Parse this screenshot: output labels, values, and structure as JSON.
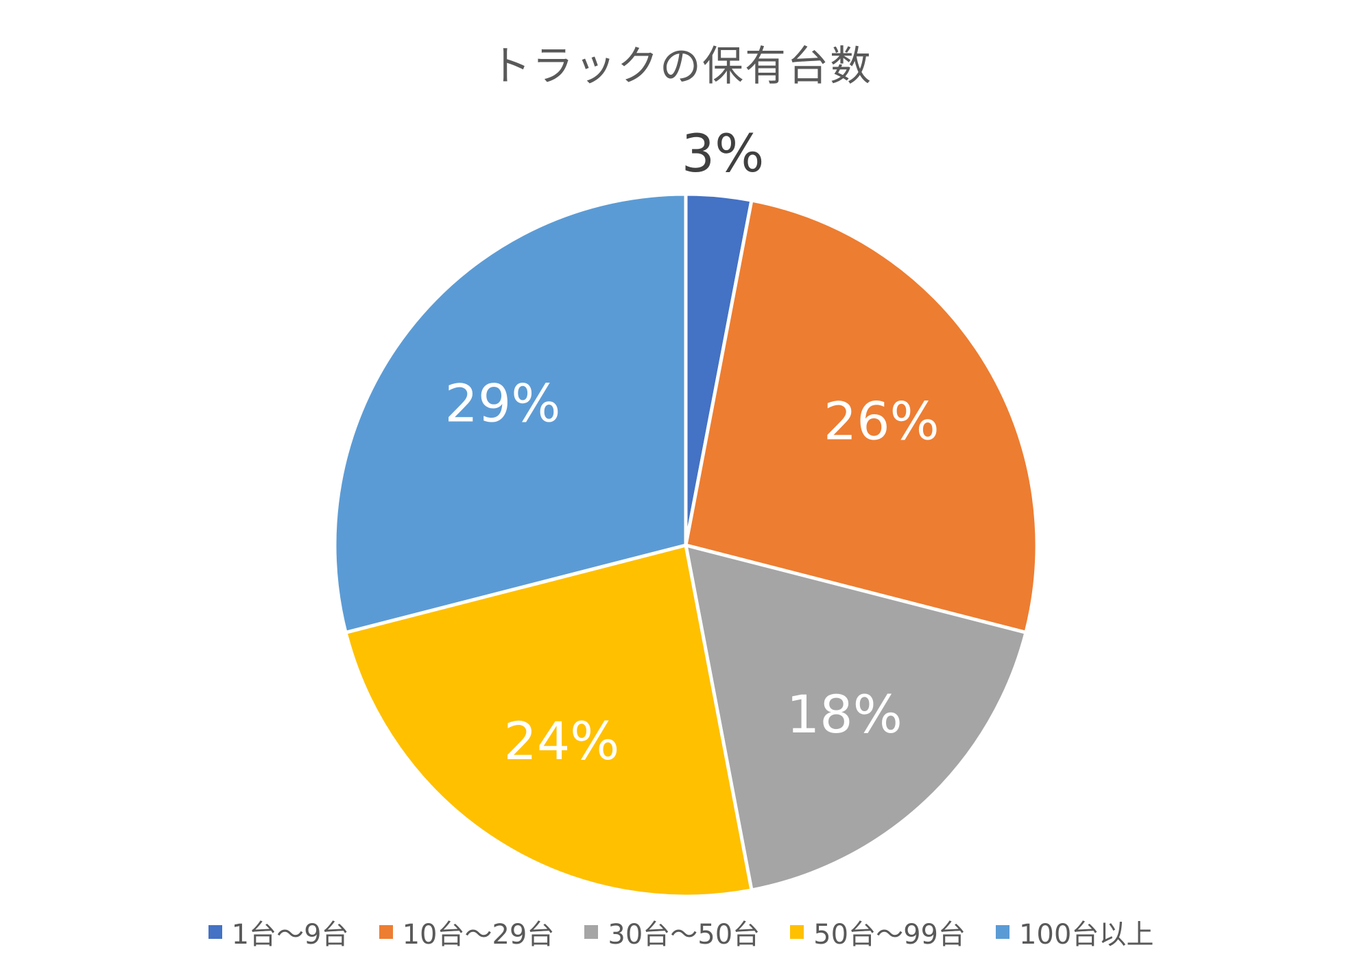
{
  "chart_data": {
    "type": "pie",
    "title": "トラックの保有台数",
    "categories": [
      "1台～9台",
      "10台～29台",
      "30台～50台",
      "50台～99台",
      "100台以上"
    ],
    "values": [
      3,
      26,
      18,
      24,
      29
    ],
    "labels": [
      "3%",
      "26%",
      "18%",
      "24%",
      "29%"
    ],
    "colors": [
      "#4472C4",
      "#ED7D31",
      "#A5A5A5",
      "#FFC000",
      "#5B9BD5"
    ],
    "start_angle_deg": 0,
    "direction": "clockwise",
    "legend_position": "bottom",
    "unit": "%"
  }
}
